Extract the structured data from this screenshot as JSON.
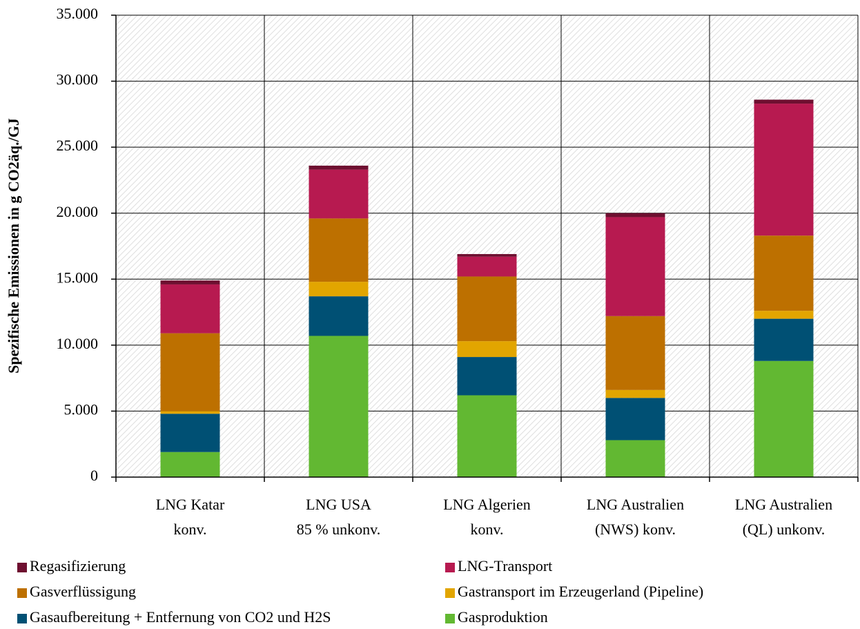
{
  "chart_data": {
    "type": "stacked-bar",
    "y_label": "Spezifische Emissionen in g CO2äq./GJ",
    "categories": [
      "LNG Katar\nkonv.",
      "LNG USA\n85 % unkonv.",
      "LNG Algerien\nkonv.",
      "LNG Australien\n(NWS) konv.",
      "LNG Australien\n(QL) unkonv."
    ],
    "series": [
      {
        "name": "Gasproduktion",
        "color": "#62b832",
        "values": [
          1900,
          10700,
          6200,
          2800,
          8800
        ]
      },
      {
        "name": "Gasaufbereitung + Entfernung von CO2 und H2S",
        "color": "#005074",
        "values": [
          2900,
          3000,
          2900,
          3200,
          3200
        ]
      },
      {
        "name": "Gastransport im Erzeugerland (Pipeline)",
        "color": "#e2a500",
        "values": [
          200,
          1100,
          1200,
          600,
          600
        ]
      },
      {
        "name": "Gasverflüssigung",
        "color": "#bd7000",
        "values": [
          5900,
          4800,
          4900,
          5600,
          5700
        ]
      },
      {
        "name": "LNG-Transport",
        "color": "#b71a50",
        "values": [
          3700,
          3700,
          1500,
          7500,
          10000
        ]
      },
      {
        "name": "Regasifizierung",
        "color": "#6e0f30",
        "values": [
          300,
          300,
          200,
          300,
          300
        ]
      }
    ],
    "ylim": [
      0,
      35000
    ],
    "yticks": [
      0,
      {
        "value": 5000,
        "label": "5.000"
      },
      {
        "value": 10000,
        "label": "10.000"
      },
      {
        "value": 15000,
        "label": "15.000"
      },
      {
        "value": 20000,
        "label": "20.000"
      },
      {
        "value": 25000,
        "label": "25.000"
      },
      {
        "value": 30000,
        "label": "30.000"
      },
      {
        "value": 35000,
        "label": "35.000"
      }
    ],
    "grid": true
  }
}
